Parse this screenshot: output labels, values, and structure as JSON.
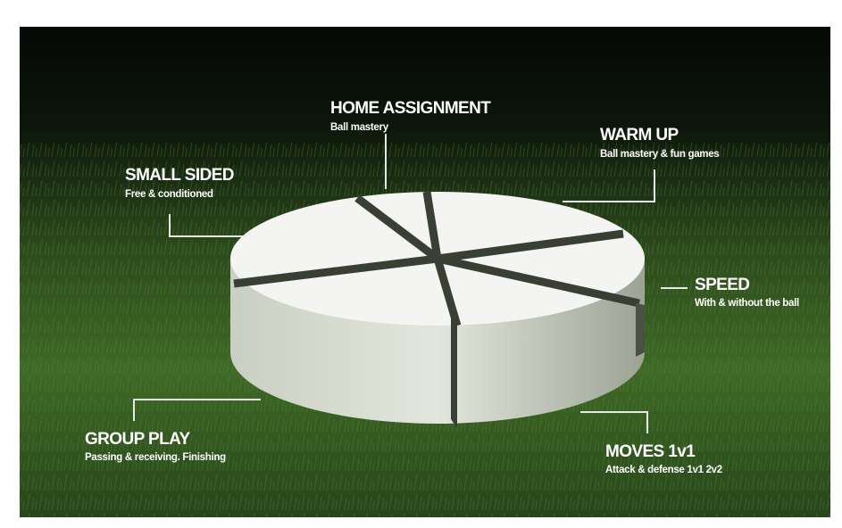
{
  "segments": [
    {
      "title": "HOME ASSIGNMENT",
      "subtitle": "Ball mastery"
    },
    {
      "title": "WARM UP",
      "subtitle": "Ball mastery & fun games"
    },
    {
      "title": "SMALL SIDED",
      "subtitle": "Free & conditioned"
    },
    {
      "title": "SPEED",
      "subtitle": "With & without the ball"
    },
    {
      "title": "GROUP PLAY",
      "subtitle": "Passing & receiving. Finishing"
    },
    {
      "title": "MOVES 1v1",
      "subtitle": "Attack & defense 1v1 2v2"
    }
  ]
}
